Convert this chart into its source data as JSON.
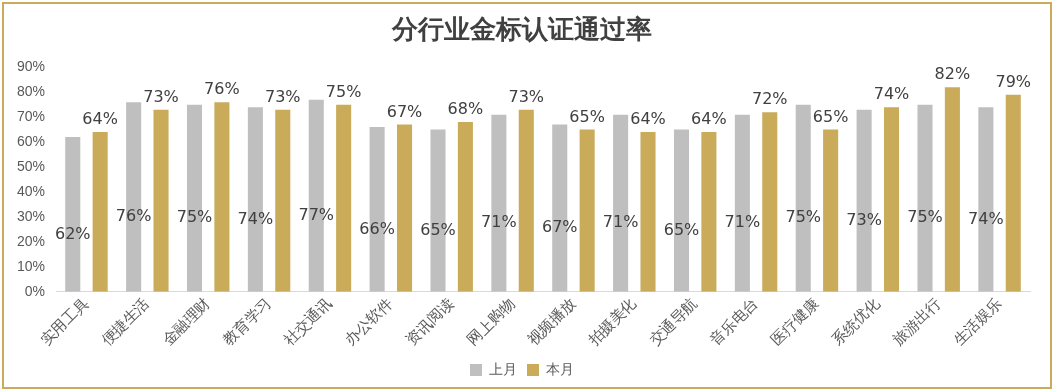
{
  "chart_data": {
    "type": "bar",
    "title": "分行业金标认证通过率",
    "categories": [
      "实用工具",
      "便捷生活",
      "金融理财",
      "教育学习",
      "社交通讯",
      "办公软件",
      "资讯阅读",
      "网上购物",
      "视频播放",
      "拍摄美化",
      "交通导航",
      "音乐电台",
      "医疗健康",
      "系统优化",
      "旅游出行",
      "生活娱乐"
    ],
    "series": [
      {
        "name": "上月",
        "color": "#bfbfbf",
        "values": [
          62,
          76,
          75,
          74,
          77,
          66,
          65,
          71,
          67,
          71,
          65,
          71,
          75,
          73,
          75,
          74
        ],
        "value_labels": [
          "62%",
          "76%",
          "75%",
          "74%",
          "77%",
          "66%",
          "65%",
          "71%",
          "67%",
          "71%",
          "65%",
          "71%",
          "75%",
          "73%",
          "75%",
          "74%"
        ]
      },
      {
        "name": "本月",
        "color": "#c9ab5a",
        "values": [
          64,
          73,
          76,
          73,
          75,
          67,
          68,
          73,
          65,
          64,
          64,
          72,
          65,
          74,
          82,
          79
        ],
        "value_labels": [
          "64%",
          "73%",
          "76%",
          "73%",
          "75%",
          "67%",
          "68%",
          "73%",
          "65%",
          "64%",
          "64%",
          "72%",
          "65%",
          "74%",
          "82%",
          "79%"
        ]
      }
    ],
    "ylim": [
      0,
      90
    ],
    "yticks": [
      {
        "value": 0,
        "label": "0%"
      },
      {
        "value": 10,
        "label": "10%"
      },
      {
        "value": 20,
        "label": "20%"
      },
      {
        "value": 30,
        "label": "30%"
      },
      {
        "value": 40,
        "label": "40%"
      },
      {
        "value": 50,
        "label": "50%"
      },
      {
        "value": 60,
        "label": "60%"
      },
      {
        "value": 70,
        "label": "70%"
      },
      {
        "value": 80,
        "label": "80%"
      },
      {
        "value": 90,
        "label": "90%"
      }
    ],
    "grid": false,
    "legend": "bottom"
  }
}
